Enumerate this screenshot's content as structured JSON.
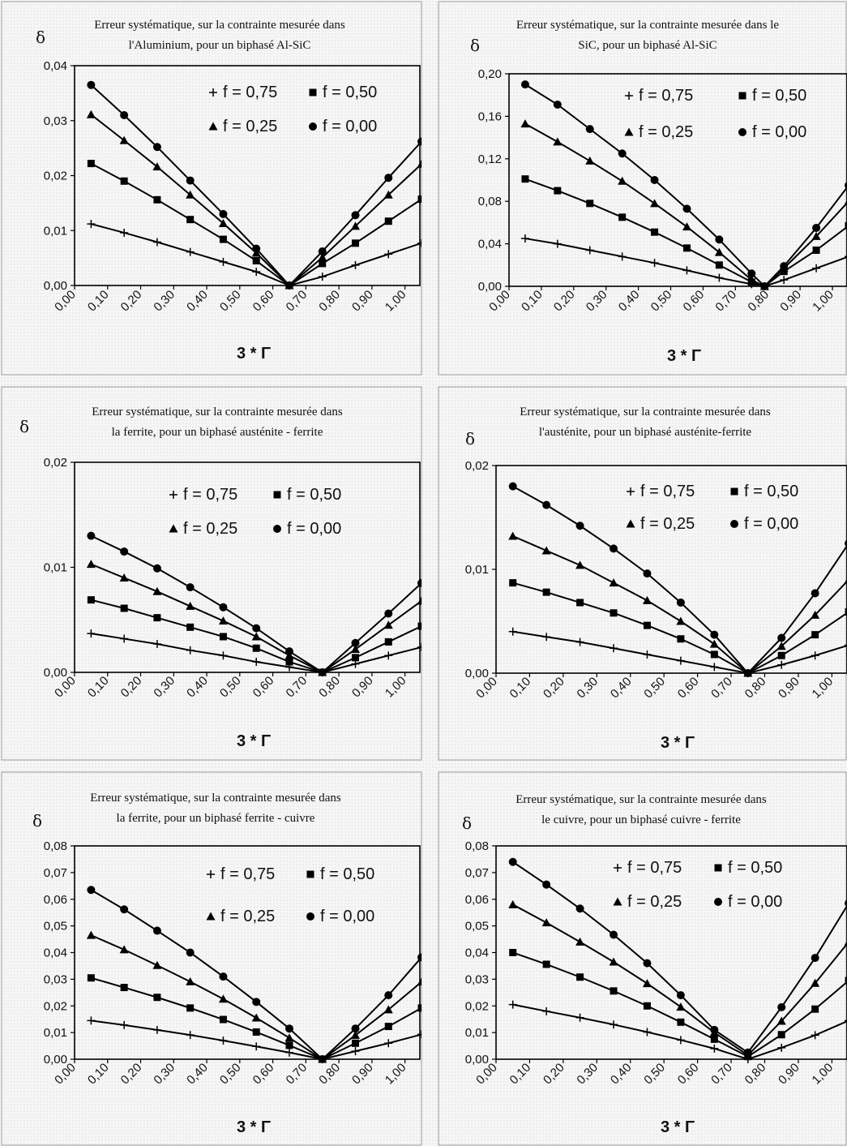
{
  "panels": [
    {
      "title": [
        "Erreur systématique, sur la contrainte mesurée dans",
        "l'Aluminium, pour un biphasé Al-SiC"
      ],
      "ylabel": "δ",
      "xlabel": "3 * Γ"
    },
    {
      "title": [
        "Erreur systématique, sur la contrainte mesurée dans le",
        "SiC, pour un biphasé Al-SiC"
      ],
      "ylabel": "δ",
      "xlabel": "3 * Γ"
    },
    {
      "title": [
        "Erreur systématique, sur la contrainte mesurée dans",
        "la ferrite, pour un biphasé austénite - ferrite"
      ],
      "ylabel": "δ",
      "xlabel": "3 * Γ"
    },
    {
      "title": [
        "Erreur systématique, sur la contrainte mesurée dans",
        "l'austénite, pour un biphasé austénite-ferrite"
      ],
      "ylabel": "δ",
      "xlabel": "3 * Γ"
    },
    {
      "title": [
        "Erreur systématique, sur la contrainte mesurée dans",
        "la ferrite, pour un biphasé ferrite - cuivre"
      ],
      "ylabel": "δ",
      "xlabel": "3 * Γ"
    },
    {
      "title": [
        "Erreur systématique, sur la contrainte mesurée dans",
        "le cuivre, pour un biphasé cuivre - ferrite"
      ],
      "ylabel": "δ",
      "xlabel": "3 * Γ"
    }
  ],
  "chart_data": [
    {
      "type": "line",
      "title": "Erreur systématique, sur la contrainte mesurée dans l'Aluminium, pour un biphasé Al-SiC",
      "xlabel": "3 * Γ",
      "ylabel": "δ",
      "x_ticks": [
        "0,00",
        "0,10",
        "0,20",
        "0,30",
        "0,40",
        "0,50",
        "0,60",
        "0,70",
        "0,80",
        "0,90",
        "1,00"
      ],
      "y_ticks": [
        "0,00",
        "0,01",
        "0,02",
        "0,03",
        "0,04"
      ],
      "xlim": [
        0,
        1.05
      ],
      "ylim": [
        0,
        0.04
      ],
      "grid": false,
      "legend_placement": "top-right",
      "x": [
        0.05,
        0.15,
        0.25,
        0.35,
        0.45,
        0.55,
        0.65,
        0.75,
        0.85,
        0.95,
        1.05
      ],
      "series": [
        {
          "name": "f = 0,75",
          "marker": "plus",
          "values": [
            0.0112,
            0.0096,
            0.0079,
            0.0061,
            0.0043,
            0.0025,
            0,
            0.0016,
            0.0037,
            0.0057,
            0.0077
          ]
        },
        {
          "name": "f = 0,50",
          "marker": "square",
          "values": [
            0.0222,
            0.019,
            0.0156,
            0.012,
            0.0084,
            0.0045,
            0,
            0.004,
            0.0077,
            0.0117,
            0.0157
          ]
        },
        {
          "name": "f = 0,25",
          "marker": "triangle",
          "values": [
            0.0311,
            0.0264,
            0.0216,
            0.0165,
            0.0113,
            0.0059,
            0,
            0.0051,
            0.0108,
            0.0165,
            0.0221
          ]
        },
        {
          "name": "f = 0,00",
          "marker": "circle",
          "values": [
            0.0365,
            0.031,
            0.0252,
            0.0191,
            0.013,
            0.0067,
            0,
            0.0062,
            0.0128,
            0.0196,
            0.0262
          ]
        }
      ]
    },
    {
      "type": "line",
      "title": "Erreur systématique, sur la contrainte mesurée dans le SiC, pour un biphasé Al-SiC",
      "xlabel": "3 * Γ",
      "ylabel": "δ",
      "x_ticks": [
        "0,00",
        "0,10",
        "0,20",
        "0,30",
        "0,40",
        "0,50",
        "0,60",
        "0,70",
        "0,80",
        "0,90",
        "1,00"
      ],
      "y_ticks": [
        "0,00",
        "0,04",
        "0,08",
        "0,12",
        "0,16",
        "0,20"
      ],
      "xlim": [
        0,
        1.05
      ],
      "ylim": [
        0,
        0.2
      ],
      "grid": false,
      "legend_placement": "top-right",
      "x": [
        0.05,
        0.15,
        0.25,
        0.35,
        0.45,
        0.55,
        0.65,
        0.75,
        0.79,
        0.85,
        0.95,
        1.05
      ],
      "series": [
        {
          "name": "f = 0,75",
          "marker": "plus",
          "values": [
            0.045,
            0.04,
            0.034,
            0.028,
            0.022,
            0.015,
            0.008,
            0.002,
            0,
            0.006,
            0.017,
            0.028
          ]
        },
        {
          "name": "f = 0,50",
          "marker": "square",
          "values": [
            0.101,
            0.09,
            0.078,
            0.065,
            0.051,
            0.036,
            0.02,
            0.004,
            0,
            0.014,
            0.034,
            0.057
          ]
        },
        {
          "name": "f = 0,25",
          "marker": "triangle",
          "values": [
            0.153,
            0.136,
            0.118,
            0.099,
            0.078,
            0.056,
            0.032,
            0.006,
            0,
            0.017,
            0.047,
            0.08
          ]
        },
        {
          "name": "f = 0,00",
          "marker": "circle",
          "values": [
            0.19,
            0.171,
            0.148,
            0.125,
            0.1,
            0.073,
            0.044,
            0.012,
            0,
            0.019,
            0.055,
            0.095
          ]
        }
      ]
    },
    {
      "type": "line",
      "title": "Erreur systématique, sur la contrainte mesurée dans la ferrite, pour un biphasé austénite - ferrite",
      "xlabel": "3 * Γ",
      "ylabel": "δ",
      "x_ticks": [
        "0,00",
        "0,10",
        "0,20",
        "0,30",
        "0,40",
        "0,50",
        "0,60",
        "0,70",
        "0,80",
        "0,90",
        "1,00"
      ],
      "y_ticks": [
        "0,00",
        "0,01",
        "0,02"
      ],
      "xlim": [
        0,
        1.05
      ],
      "ylim": [
        0,
        0.02
      ],
      "grid": false,
      "legend_placement": "top-right",
      "x": [
        0.05,
        0.15,
        0.25,
        0.35,
        0.45,
        0.55,
        0.65,
        0.75,
        0.85,
        0.95,
        1.05
      ],
      "series": [
        {
          "name": "f = 0,75",
          "marker": "plus",
          "values": [
            0.0037,
            0.0032,
            0.0027,
            0.0021,
            0.0016,
            0.001,
            0.0005,
            0,
            0.0008,
            0.0016,
            0.0024
          ]
        },
        {
          "name": "f = 0,50",
          "marker": "square",
          "values": [
            0.0069,
            0.0061,
            0.0052,
            0.0043,
            0.0034,
            0.0023,
            0.001,
            0,
            0.0014,
            0.0029,
            0.0044
          ]
        },
        {
          "name": "f = 0,25",
          "marker": "triangle",
          "values": [
            0.0103,
            0.009,
            0.0077,
            0.0063,
            0.0049,
            0.0034,
            0.0016,
            0,
            0.0022,
            0.0045,
            0.0068
          ]
        },
        {
          "name": "f = 0,00",
          "marker": "circle",
          "values": [
            0.013,
            0.0115,
            0.0099,
            0.0081,
            0.0062,
            0.0042,
            0.002,
            0,
            0.0028,
            0.0056,
            0.0085
          ]
        }
      ]
    },
    {
      "type": "line",
      "title": "Erreur systématique, sur la contrainte mesurée dans l'austénite, pour un biphasé austénite-ferrite",
      "xlabel": "3 * Γ",
      "ylabel": "δ",
      "x_ticks": [
        "0,00",
        "0,10",
        "0,20",
        "0,30",
        "0,40",
        "0,50",
        "0,60",
        "0,70",
        "0,80",
        "0,90",
        "1,00"
      ],
      "y_ticks": [
        "0,00",
        "0,01",
        "0,02"
      ],
      "xlim": [
        0,
        1.05
      ],
      "ylim": [
        0,
        0.02
      ],
      "grid": false,
      "legend_placement": "top-right",
      "x": [
        0.05,
        0.15,
        0.25,
        0.35,
        0.45,
        0.55,
        0.65,
        0.75,
        0.85,
        0.95,
        1.05
      ],
      "series": [
        {
          "name": "f = 0,75",
          "marker": "plus",
          "values": [
            0.004,
            0.0035,
            0.003,
            0.0024,
            0.0018,
            0.0012,
            0.0006,
            0,
            0.0008,
            0.0017,
            0.0027
          ]
        },
        {
          "name": "f = 0,50",
          "marker": "square",
          "values": [
            0.0087,
            0.0078,
            0.0068,
            0.0058,
            0.0046,
            0.0033,
            0.0018,
            0,
            0.0017,
            0.0037,
            0.0059
          ]
        },
        {
          "name": "f = 0,25",
          "marker": "triangle",
          "values": [
            0.0132,
            0.0118,
            0.0104,
            0.0087,
            0.007,
            0.005,
            0.0028,
            0,
            0.0026,
            0.0056,
            0.009
          ]
        },
        {
          "name": "f = 0,00",
          "marker": "circle",
          "values": [
            0.018,
            0.0162,
            0.0142,
            0.012,
            0.0096,
            0.0068,
            0.0037,
            0,
            0.0034,
            0.0077,
            0.0125
          ]
        }
      ]
    },
    {
      "type": "line",
      "title": "Erreur systématique, sur la contrainte mesurée dans la ferrite, pour un biphasé ferrite - cuivre",
      "xlabel": "3 * Γ",
      "ylabel": "δ",
      "x_ticks": [
        "0,00",
        "0,10",
        "0,20",
        "0,30",
        "0,40",
        "0,50",
        "0,60",
        "0,70",
        "0,80",
        "0,90",
        "1,00"
      ],
      "y_ticks": [
        "0,00",
        "0,01",
        "0,02",
        "0,03",
        "0,04",
        "0,05",
        "0,06",
        "0,07",
        "0,08"
      ],
      "xlim": [
        0,
        1.05
      ],
      "ylim": [
        0,
        0.08
      ],
      "grid": false,
      "legend_placement": "top-right",
      "x": [
        0.05,
        0.15,
        0.25,
        0.35,
        0.45,
        0.55,
        0.65,
        0.75,
        0.85,
        0.95,
        1.05
      ],
      "series": [
        {
          "name": "f = 0,75",
          "marker": "plus",
          "values": [
            0.0145,
            0.0128,
            0.011,
            0.0091,
            0.007,
            0.0048,
            0.0025,
            0,
            0.003,
            0.006,
            0.0093
          ]
        },
        {
          "name": "f = 0,50",
          "marker": "square",
          "values": [
            0.0305,
            0.0269,
            0.0232,
            0.0192,
            0.0149,
            0.0102,
            0.0052,
            0,
            0.006,
            0.0123,
            0.0192
          ]
        },
        {
          "name": "f = 0,25",
          "marker": "triangle",
          "values": [
            0.0465,
            0.0411,
            0.0352,
            0.0291,
            0.0226,
            0.0155,
            0.008,
            0,
            0.009,
            0.0186,
            0.029
          ]
        },
        {
          "name": "f = 0,00",
          "marker": "circle",
          "values": [
            0.0635,
            0.0562,
            0.0482,
            0.04,
            0.031,
            0.0215,
            0.0115,
            0,
            0.0115,
            0.024,
            0.0382
          ]
        }
      ]
    },
    {
      "type": "line",
      "title": "Erreur systématique, sur la contrainte mesurée dans le cuivre, pour un biphasé cuivre - ferrite",
      "xlabel": "3 * Γ",
      "ylabel": "δ",
      "x_ticks": [
        "0,00",
        "0,10",
        "0,20",
        "0,30",
        "0,40",
        "0,50",
        "0,60",
        "0,70",
        "0,80",
        "0,90",
        "1,00"
      ],
      "y_ticks": [
        "0,00",
        "0,01",
        "0,02",
        "0,03",
        "0,04",
        "0,05",
        "0,06",
        "0,07",
        "0,08"
      ],
      "xlim": [
        0,
        1.05
      ],
      "ylim": [
        0,
        0.08
      ],
      "grid": false,
      "legend_placement": "top-right",
      "x": [
        0.05,
        0.15,
        0.25,
        0.35,
        0.45,
        0.55,
        0.65,
        0.75,
        0.85,
        0.95,
        1.05
      ],
      "series": [
        {
          "name": "f = 0,75",
          "marker": "plus",
          "values": [
            0.0205,
            0.018,
            0.0156,
            0.013,
            0.0102,
            0.0072,
            0.004,
            0,
            0.0043,
            0.009,
            0.0145
          ]
        },
        {
          "name": "f = 0,50",
          "marker": "square",
          "values": [
            0.04,
            0.0356,
            0.0308,
            0.0256,
            0.02,
            0.0139,
            0.0075,
            0.001,
            0.0092,
            0.0188,
            0.0295
          ]
        },
        {
          "name": "f = 0,25",
          "marker": "triangle",
          "values": [
            0.058,
            0.0512,
            0.044,
            0.0365,
            0.0284,
            0.0196,
            0.01,
            0.0015,
            0.0143,
            0.0285,
            0.044
          ]
        },
        {
          "name": "f = 0,00",
          "marker": "circle",
          "values": [
            0.074,
            0.0655,
            0.0565,
            0.0467,
            0.036,
            0.024,
            0.011,
            0.0025,
            0.0195,
            0.038,
            0.0585
          ]
        }
      ]
    }
  ]
}
